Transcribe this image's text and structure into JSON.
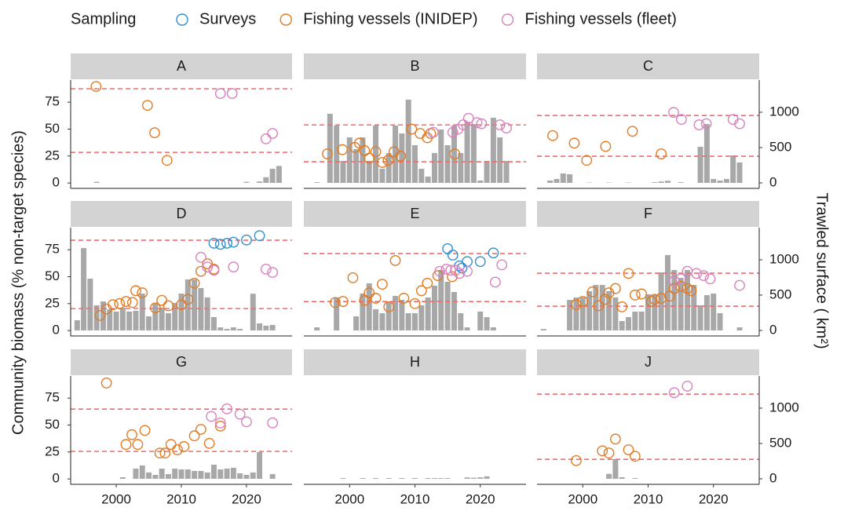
{
  "chart_data": {
    "type": "facet",
    "legend_title": "Sampling",
    "series": [
      {
        "name": "Surveys",
        "color": "#2f8fcf"
      },
      {
        "name": "Fishing vessels (INIDEP)",
        "color": "#e07b24"
      },
      {
        "name": "Fishing vessels (fleet)",
        "color": "#d782bd"
      }
    ],
    "bar_color": "#a8a8a8",
    "hline_color": "#f26b6b",
    "ylabel": "Community biomass (% non-target species)",
    "y2label": "Trawled surface ( km²)",
    "xlim": [
      1993,
      2027
    ],
    "xticks": [
      2000,
      2010,
      2020
    ],
    "ylim": [
      -5,
      95.5
    ],
    "yticks": [
      0,
      25,
      50,
      75
    ],
    "y2lim": [
      -78,
      1455
    ],
    "y2ticks": [
      0,
      500,
      1000
    ],
    "panels": [
      {
        "title": "A",
        "bars": {
          "x": [
            1997,
            2020,
            2022,
            2023,
            2024,
            2025
          ],
          "values": [
            15,
            15,
            20,
            80,
            200,
            240
          ]
        },
        "points": [
          {
            "x": [],
            "values": []
          },
          {
            "x": [
              1996.9,
              2004.8,
              2005.9,
              2007.8
            ],
            "values": [
              89.6,
              72,
              46.6,
              21
            ]
          },
          {
            "x": [
              2016,
              2017.8,
              2023,
              2024
            ],
            "values": [
              83,
              83,
              41,
              46
            ]
          }
        ],
        "hlines": [
          87.4,
          28.4
        ]
      },
      {
        "title": "B",
        "bars": {
          "x": [
            1995,
            1997,
            1998,
            1999,
            2000,
            2001,
            2002,
            2003,
            2004,
            2005,
            2006,
            2007,
            2008,
            2009,
            2010,
            2011,
            2012,
            2013,
            2014,
            2015,
            2016,
            2017,
            2018,
            2019,
            2020,
            2021,
            2022,
            2023,
            2024
          ],
          "values": [
            10,
            978,
            811,
            311,
            644,
            478,
            644,
            311,
            811,
            200,
            422,
            811,
            700,
            1178,
            533,
            200,
            89,
            422,
            756,
            533,
            811,
            422,
            867,
            833,
            33,
            311,
            922,
            644,
            311
          ]
        },
        "points": [
          {
            "x": [],
            "values": []
          },
          {
            "x": [
              1996.6,
              1998.9,
              2000.8,
              2001.5,
              2002.3,
              2003,
              2004,
              2005,
              2005.9,
              2006.8,
              2007.8,
              2009.5,
              2010.8,
              2011.9,
              2012.4,
              2016.1
            ],
            "values": [
              27,
              31,
              33,
              37,
              30,
              23,
              29,
              19,
              21,
              29,
              25,
              50,
              46,
              42,
              46,
              27
            ]
          },
          {
            "x": [
              2012.8,
              2015.8,
              2016.6,
              2017.4,
              2018.2,
              2019.5,
              2020.2,
              2023,
              2024
            ],
            "values": [
              47,
              47,
              50,
              54,
              60,
              56,
              55,
              54,
              51
            ]
          }
        ],
        "hlines": [
          53.9,
          19.7
        ]
      },
      {
        "title": "C",
        "bars": {
          "x": [
            1995,
            1996,
            1997,
            1998,
            2001,
            2004,
            2007,
            2011,
            2012,
            2013,
            2015,
            2018,
            2019,
            2020,
            2021,
            2022,
            2023,
            2024
          ],
          "values": [
            33,
            55,
            133,
            122,
            5,
            5,
            5,
            10,
            20,
            30,
            10,
            511,
            833,
            55,
            33,
            55,
            389,
            289
          ]
        },
        "points": [
          {
            "x": [],
            "values": []
          },
          {
            "x": [
              1995.4,
              1998.7,
              2000.6,
              2003.5,
              2007.6,
              2012
            ],
            "values": [
              44,
              37,
              21,
              34,
              48,
              27
            ]
          },
          {
            "x": [
              2013.9,
              2015.1,
              2017.8,
              2018.9,
              2023,
              2024
            ],
            "values": [
              65.5,
              59,
              54,
              55,
              59,
              55
            ]
          }
        ],
        "hlines": [
          62.6,
          24.8
        ]
      },
      {
        "title": "D",
        "bars": {
          "x": [
            1994,
            1995,
            1996,
            1997,
            1998,
            1999,
            2000,
            2001,
            2002,
            2003,
            2004,
            2005,
            2006,
            2007,
            2008,
            2009,
            2010,
            2011,
            2012,
            2013,
            2014,
            2015,
            2016,
            2017,
            2018,
            2019,
            2021,
            2022,
            2023,
            2024
          ],
          "values": [
            144,
            1167,
            733,
            356,
            411,
            300,
            267,
            322,
            267,
            278,
            522,
            200,
            378,
            322,
            244,
            389,
            522,
            722,
            722,
            600,
            467,
            189,
            44,
            22,
            44,
            22,
            520,
            100,
            67,
            78
          ]
        },
        "points": [
          {
            "x": [
              2015,
              2016,
              2017,
              2018,
              2020,
              2022
            ],
            "values": [
              81,
              80,
              81,
              82,
              84,
              88
            ]
          },
          {
            "x": [
              1997.5,
              1998.5,
              1999.5,
              2000.5,
              2001.5,
              2002.5,
              2003,
              2004,
              2006,
              2007,
              2008,
              2010,
              2011,
              2012,
              2013,
              2014,
              2015
            ],
            "values": [
              14,
              20,
              24,
              25,
              27,
              26,
              37,
              35,
              21,
              28,
              23,
              24,
              29,
              44,
              55,
              62,
              57
            ]
          },
          {
            "x": [
              2013,
              2014,
              2015,
              2018,
              2023,
              2024
            ],
            "values": [
              68,
              59,
              56,
              59,
              57,
              54
            ]
          }
        ],
        "hlines": [
          83.8,
          20.4
        ]
      },
      {
        "title": "E",
        "bars": {
          "x": [
            1995,
            1998,
            2001,
            2002,
            2003,
            2004,
            2005,
            2006,
            2007,
            2008,
            2009,
            2010,
            2011,
            2012,
            2013,
            2014,
            2015,
            2016,
            2017,
            2018,
            2020,
            2021,
            2022
          ],
          "values": [
            44,
            467,
            200,
            522,
            667,
            300,
            244,
            411,
            489,
            433,
            244,
            244,
            356,
            467,
            633,
            856,
            689,
            544,
            244,
            44,
            267,
            189,
            44
          ]
        },
        "points": [
          {
            "x": [
              2015,
              2015.8,
              2016.8,
              2017.2,
              2018,
              2020,
              2022
            ],
            "values": [
              76,
              70,
              60,
              58,
              64,
              64,
              72
            ]
          },
          {
            "x": [
              1997.8,
              1999,
              2000.5,
              2002.3,
              2003,
              2004,
              2005,
              2006,
              2007,
              2008.3,
              2010,
              2011,
              2011.9,
              2013.5,
              2015.7
            ],
            "values": [
              26,
              27,
              49,
              28,
              35,
              30,
              43,
              22,
              65,
              30,
              25,
              37,
              44,
              51,
              50
            ]
          },
          {
            "x": [
              2013.8,
              2014.8,
              2015.5,
              2016.2,
              2016.8,
              2018,
              2022.3,
              2023.3
            ],
            "values": [
              55,
              57,
              56,
              56,
              53,
              55,
              45,
              61
            ]
          }
        ],
        "hlines": [
          71.4,
          26.9
        ]
      },
      {
        "title": "F",
        "bars": {
          "x": [
            1994,
            1998,
            1999,
            2000,
            2001,
            2002,
            2003,
            2004,
            2005,
            2006,
            2007,
            2008,
            2009,
            2010,
            2011,
            2012,
            2013,
            2014,
            2015,
            2016,
            2017,
            2018,
            2019,
            2020,
            2021,
            2024
          ],
          "values": [
            20,
            433,
            467,
            467,
            556,
            644,
            644,
            556,
            467,
            133,
            189,
            267,
            267,
            511,
            511,
            822,
            1067,
            856,
            744,
            856,
            644,
            356,
            500,
            522,
            244,
            44
          ]
        },
        "points": [
          {
            "x": [],
            "values": []
          },
          {
            "x": [
              1999,
              2000,
              2001.5,
              2002.4,
              2003.4,
              2004,
              2005,
              2006,
              2007,
              2008,
              2009,
              2010.5,
              2011,
              2012,
              2013.3,
              2014,
              2015,
              2016,
              2016.6
            ],
            "values": [
              24,
              27,
              36,
              23,
              29,
              35,
              39,
              22,
              53,
              33,
              34,
              27,
              29,
              30,
              32,
              39,
              41,
              39,
              37
            ]
          },
          {
            "x": [
              2014,
              2015,
              2016,
              2017.4,
              2018.5,
              2019.5,
              2024
            ],
            "values": [
              46,
              48,
              55,
              53,
              51,
              48,
              42
            ]
          }
        ],
        "hlines": [
          53.2,
          22.6
        ]
      },
      {
        "title": "G",
        "bars": {
          "x": [
            2001,
            2003,
            2004,
            2005,
            2006,
            2007,
            2008,
            2009,
            2010,
            2011,
            2012,
            2013,
            2014,
            2015,
            2016,
            2017,
            2018,
            2019,
            2020,
            2021,
            2022,
            2024
          ],
          "values": [
            22,
            144,
            189,
            89,
            56,
            144,
            67,
            144,
            133,
            133,
            111,
            111,
            89,
            200,
            133,
            144,
            156,
            78,
            56,
            89,
            378,
            67
          ]
        },
        "points": [
          {
            "x": [],
            "values": []
          },
          {
            "x": [
              1998.5,
              2001.5,
              2002.4,
              2003.3,
              2004.4,
              2006.7,
              2007.5,
              2008.4,
              2009.4,
              2010.4,
              2012,
              2013,
              2014.3,
              2016
            ],
            "values": [
              89,
              32,
              41,
              32,
              45,
              24,
              24,
              32,
              27,
              30,
              40,
              46,
              33,
              49
            ]
          },
          {
            "x": [
              2014.6,
              2016,
              2017,
              2019,
              2020,
              2024
            ],
            "values": [
              58,
              52,
              65,
              60,
              53,
              52
            ]
          }
        ],
        "hlines": [
          64.8,
          25.5
        ]
      },
      {
        "title": "H",
        "bars": {
          "x": [
            1999,
            2002,
            2004,
            2006,
            2008,
            2010,
            2012,
            2013,
            2014,
            2015,
            2018,
            2019,
            2020,
            2021
          ],
          "values": [
            10,
            10,
            10,
            10,
            10,
            10,
            10,
            10,
            10,
            10,
            20,
            15,
            20,
            35
          ]
        },
        "points": [
          {
            "x": [],
            "values": []
          },
          {
            "x": [],
            "values": []
          },
          {
            "x": [],
            "values": []
          }
        ],
        "hlines": []
      },
      {
        "title": "J",
        "bars": {
          "x": [
            2004,
            2005,
            2006,
            2008
          ],
          "values": [
            70,
            280,
            22,
            10
          ]
        },
        "points": [
          {
            "x": [],
            "values": []
          },
          {
            "x": [
              1999,
              2003,
              2004,
              2005,
              2007,
              2008
            ],
            "values": [
              17,
              26,
              24,
              37,
              27,
              21
            ]
          },
          {
            "x": [
              2014,
              2016
            ],
            "values": [
              80,
              86
            ]
          }
        ],
        "hlines": [
          78.7,
          18.2
        ]
      }
    ]
  }
}
